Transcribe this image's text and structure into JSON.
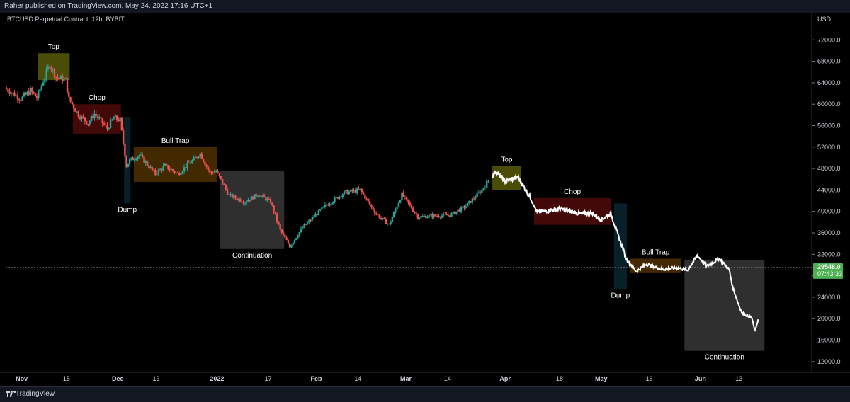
{
  "header": {
    "publisher_text": "Raher published on TradingView.com, May 24, 2022 17:16 UTC+1"
  },
  "footer": {
    "brand": "TradingView",
    "logo_icon": "tradingview-logo-icon"
  },
  "chart_data": {
    "type": "candlestick",
    "title": "BTCUSD Perpetual Contract, 12h, BYBIT",
    "price_axis_unit": "USD",
    "ylim": [
      10000,
      76000
    ],
    "y_ticks": [
      "72000.0",
      "68000.0",
      "64000.0",
      "60000.0",
      "56000.0",
      "52000.0",
      "48000.0",
      "44000.0",
      "40000.0",
      "36000.0",
      "32000.0",
      "28000.0",
      "24000.0",
      "20000.0",
      "16000.0",
      "12000.0"
    ],
    "x_range": [
      "2021-10-27",
      "2022-06-30"
    ],
    "x_ticks": [
      {
        "label": "Nov",
        "date": "2021-11-01"
      },
      {
        "label": "15",
        "date": "2021-11-15"
      },
      {
        "label": "Dec",
        "date": "2021-12-01"
      },
      {
        "label": "13",
        "date": "2021-12-13"
      },
      {
        "label": "2022",
        "date": "2022-01-01"
      },
      {
        "label": "17",
        "date": "2022-01-17"
      },
      {
        "label": "Feb",
        "date": "2022-02-01"
      },
      {
        "label": "14",
        "date": "2022-02-14"
      },
      {
        "label": "Mar",
        "date": "2022-03-01"
      },
      {
        "label": "14",
        "date": "2022-03-14"
      },
      {
        "label": "Apr",
        "date": "2022-04-01"
      },
      {
        "label": "18",
        "date": "2022-04-18"
      },
      {
        "label": "May",
        "date": "2022-05-01"
      },
      {
        "label": "16",
        "date": "2022-05-16"
      },
      {
        "label": "Jun",
        "date": "2022-06-01"
      },
      {
        "label": "13",
        "date": "2022-06-13"
      }
    ],
    "price_path": [
      [
        "2021-10-27",
        63000
      ],
      [
        "2021-11-01",
        61000
      ],
      [
        "2021-11-04",
        62500
      ],
      [
        "2021-11-06",
        61200
      ],
      [
        "2021-11-10",
        67500
      ],
      [
        "2021-11-12",
        65000
      ],
      [
        "2021-11-15",
        64500
      ],
      [
        "2021-11-16",
        61000
      ],
      [
        "2021-11-19",
        58000
      ],
      [
        "2021-11-22",
        56500
      ],
      [
        "2021-11-24",
        58200
      ],
      [
        "2021-11-28",
        55500
      ],
      [
        "2021-11-30",
        57500
      ],
      [
        "2021-12-02",
        57000
      ],
      [
        "2021-12-04",
        48500
      ],
      [
        "2021-12-05",
        49500
      ],
      [
        "2021-12-08",
        50500
      ],
      [
        "2021-12-13",
        47000
      ],
      [
        "2021-12-16",
        48500
      ],
      [
        "2021-12-20",
        47000
      ],
      [
        "2021-12-27",
        50800
      ],
      [
        "2021-12-30",
        47200
      ],
      [
        "2022-01-01",
        47500
      ],
      [
        "2022-01-05",
        43000
      ],
      [
        "2022-01-10",
        41800
      ],
      [
        "2022-01-14",
        43200
      ],
      [
        "2022-01-18",
        41800
      ],
      [
        "2022-01-21",
        36500
      ],
      [
        "2022-01-24",
        33500
      ],
      [
        "2022-01-28",
        37000
      ],
      [
        "2022-02-04",
        41000
      ],
      [
        "2022-02-10",
        43500
      ],
      [
        "2022-02-15",
        44000
      ],
      [
        "2022-02-20",
        39500
      ],
      [
        "2022-02-24",
        37500
      ],
      [
        "2022-02-28",
        43200
      ],
      [
        "2022-03-05",
        39000
      ],
      [
        "2022-03-10",
        39200
      ],
      [
        "2022-03-15",
        39300
      ],
      [
        "2022-03-20",
        41000
      ],
      [
        "2022-03-25",
        44000
      ],
      [
        "2022-03-29",
        47500
      ],
      [
        "2022-04-01",
        45600
      ],
      [
        "2022-04-05",
        46400
      ],
      [
        "2022-04-09",
        42500
      ],
      [
        "2022-04-11",
        39800
      ],
      [
        "2022-04-18",
        40500
      ],
      [
        "2022-04-25",
        39500
      ],
      [
        "2022-04-28",
        39700
      ],
      [
        "2022-05-01",
        38500
      ],
      [
        "2022-05-04",
        39600
      ],
      [
        "2022-05-06",
        36000
      ],
      [
        "2022-05-09",
        31000
      ],
      [
        "2022-05-12",
        28800
      ],
      [
        "2022-05-15",
        30200
      ],
      [
        "2022-05-20",
        29200
      ],
      [
        "2022-05-25",
        29500
      ],
      [
        "2022-05-28",
        29000
      ],
      [
        "2022-05-31",
        31800
      ],
      [
        "2022-06-03",
        29800
      ],
      [
        "2022-06-07",
        31200
      ],
      [
        "2022-06-10",
        29100
      ],
      [
        "2022-06-11",
        26000
      ],
      [
        "2022-06-13",
        22500
      ],
      [
        "2022-06-14",
        21000
      ],
      [
        "2022-06-17",
        20200
      ],
      [
        "2022-06-18",
        17700
      ],
      [
        "2022-06-19",
        19800
      ]
    ],
    "last_price": {
      "value": "29548.0",
      "countdown": "07:43:33",
      "price": 29548
    },
    "annotations": [
      {
        "label": "Top",
        "type": "zone",
        "color": "#8a8a10",
        "x0": "2021-11-06",
        "x1": "2021-11-16",
        "y0": 64500,
        "y1": 69500
      },
      {
        "label": "Chop",
        "type": "zone",
        "color": "#7a1010",
        "x0": "2021-11-17",
        "x1": "2021-12-02",
        "y0": 54500,
        "y1": 60000
      },
      {
        "label": "Dump",
        "type": "zone",
        "color": "#0d3a4a",
        "x0": "2021-12-03",
        "x1": "2021-12-05",
        "y0": 41500,
        "y1": 57500
      },
      {
        "label": "Bull Trap",
        "type": "zone",
        "color": "#7a4a00",
        "x0": "2021-12-06",
        "x1": "2022-01-01",
        "y0": 45500,
        "y1": 52000
      },
      {
        "label": "Continuation",
        "type": "zone",
        "color": "#555555",
        "x0": "2022-01-02",
        "x1": "2022-01-22",
        "y0": 33000,
        "y1": 47500
      },
      {
        "label": "Top",
        "type": "zone",
        "color": "#8a8a10",
        "x0": "2022-03-28",
        "x1": "2022-04-06",
        "y0": 44000,
        "y1": 48500
      },
      {
        "label": "Chop",
        "type": "zone",
        "color": "#7a1010",
        "x0": "2022-04-10",
        "x1": "2022-05-04",
        "y0": 37500,
        "y1": 42500
      },
      {
        "label": "Dump",
        "type": "zone",
        "color": "#0d3a4a",
        "x0": "2022-05-05",
        "x1": "2022-05-09",
        "y0": 25500,
        "y1": 41500
      },
      {
        "label": "Bull Trap",
        "type": "zone",
        "color": "#7a4a00",
        "x0": "2022-05-10",
        "x1": "2022-05-26",
        "y0": 28500,
        "y1": 31200
      },
      {
        "label": "Continuation",
        "type": "zone",
        "color": "#555555",
        "x0": "2022-05-27",
        "x1": "2022-06-21",
        "y0": 14000,
        "y1": 31000
      }
    ],
    "colors": {
      "up": "#26a69a",
      "down": "#ef5350",
      "line": "#ffffff",
      "price_label": "#4caf50",
      "background": "#000000"
    },
    "grid": false
  }
}
